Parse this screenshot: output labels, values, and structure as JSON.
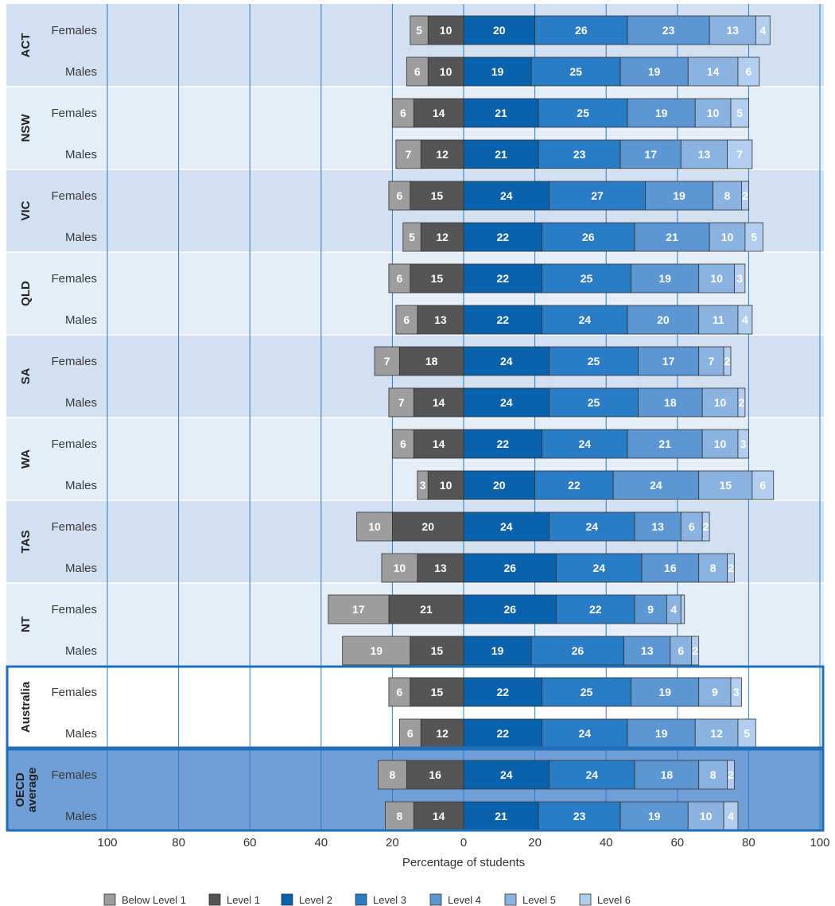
{
  "chart_data": {
    "type": "bar",
    "orientation": "horizontal-diverging",
    "xlabel": "Percentage of students",
    "xlim": [
      -100,
      100
    ],
    "ticks": [
      {
        "value": -100,
        "label": "100"
      },
      {
        "value": -80,
        "label": "80"
      },
      {
        "value": -60,
        "label": "60"
      },
      {
        "value": -40,
        "label": "40"
      },
      {
        "value": -20,
        "label": "20"
      },
      {
        "value": 0,
        "label": "0"
      },
      {
        "value": 20,
        "label": "20"
      },
      {
        "value": 40,
        "label": "40"
      },
      {
        "value": 60,
        "label": "60"
      },
      {
        "value": 80,
        "label": "80"
      },
      {
        "value": 100,
        "label": "100"
      }
    ],
    "grid": true,
    "legend_position": "bottom",
    "levels": [
      {
        "name": "Below Level 1",
        "color": "#9d9d9d",
        "side": "negative"
      },
      {
        "name": "Level 1",
        "color": "#555555",
        "side": "negative"
      },
      {
        "name": "Level 2",
        "color": "#0a62ad",
        "side": "positive"
      },
      {
        "name": "Level 3",
        "color": "#2a7cc4",
        "side": "positive"
      },
      {
        "name": "Level 4",
        "color": "#5c97d3",
        "side": "positive"
      },
      {
        "name": "Level 5",
        "color": "#8ab3e1",
        "side": "positive"
      },
      {
        "name": "Level 6",
        "color": "#b2cdee",
        "side": "positive"
      }
    ],
    "groups": [
      {
        "name": "ACT",
        "style": "a",
        "rows": [
          {
            "label": "Females",
            "values": [
              5,
              10,
              20,
              26,
              23,
              13,
              4
            ]
          },
          {
            "label": "Males",
            "values": [
              6,
              10,
              19,
              25,
              19,
              14,
              6
            ]
          }
        ]
      },
      {
        "name": "NSW",
        "style": "b",
        "rows": [
          {
            "label": "Females",
            "values": [
              6,
              14,
              21,
              25,
              19,
              10,
              5
            ]
          },
          {
            "label": "Males",
            "values": [
              7,
              12,
              21,
              23,
              17,
              13,
              7
            ]
          }
        ]
      },
      {
        "name": "VIC",
        "style": "a",
        "rows": [
          {
            "label": "Females",
            "values": [
              6,
              15,
              24,
              27,
              19,
              8,
              2
            ]
          },
          {
            "label": "Males",
            "values": [
              5,
              12,
              22,
              26,
              21,
              10,
              5
            ]
          }
        ]
      },
      {
        "name": "QLD",
        "style": "b",
        "rows": [
          {
            "label": "Females",
            "values": [
              6,
              15,
              22,
              25,
              19,
              10,
              3
            ]
          },
          {
            "label": "Males",
            "values": [
              6,
              13,
              22,
              24,
              20,
              11,
              4
            ]
          }
        ]
      },
      {
        "name": "SA",
        "style": "a",
        "rows": [
          {
            "label": "Females",
            "values": [
              7,
              18,
              24,
              25,
              17,
              7,
              2
            ]
          },
          {
            "label": "Males",
            "values": [
              7,
              14,
              24,
              25,
              18,
              10,
              2
            ]
          }
        ]
      },
      {
        "name": "WA",
        "style": "b",
        "rows": [
          {
            "label": "Females",
            "values": [
              6,
              14,
              22,
              24,
              21,
              10,
              3
            ]
          },
          {
            "label": "Males",
            "values": [
              3,
              10,
              20,
              22,
              24,
              15,
              6
            ]
          }
        ]
      },
      {
        "name": "TAS",
        "style": "a",
        "rows": [
          {
            "label": "Females",
            "values": [
              10,
              20,
              24,
              24,
              13,
              6,
              2
            ]
          },
          {
            "label": "Males",
            "values": [
              10,
              13,
              26,
              24,
              16,
              8,
              2
            ]
          }
        ]
      },
      {
        "name": "NT",
        "style": "b",
        "rows": [
          {
            "label": "Females",
            "values": [
              17,
              21,
              26,
              22,
              9,
              4,
              1
            ]
          },
          {
            "label": "Males",
            "values": [
              19,
              15,
              19,
              26,
              13,
              6,
              2
            ]
          }
        ]
      },
      {
        "name": "Australia",
        "style": "australia",
        "rows": [
          {
            "label": "Females",
            "values": [
              6,
              15,
              22,
              25,
              19,
              9,
              3
            ]
          },
          {
            "label": "Males",
            "values": [
              6,
              12,
              22,
              24,
              19,
              12,
              5
            ]
          }
        ]
      },
      {
        "name": "OECD average",
        "name_lines": [
          "OECD",
          "average"
        ],
        "style": "oecd",
        "rows": [
          {
            "label": "Females",
            "values": [
              8,
              16,
              24,
              24,
              18,
              8,
              2
            ]
          },
          {
            "label": "Males",
            "values": [
              8,
              14,
              21,
              23,
              19,
              10,
              4
            ]
          }
        ]
      }
    ],
    "hidden_value_labels": [
      [
        7,
        0,
        6
      ]
    ],
    "band_colors": {
      "a": "#d3e0f1",
      "b": "#e5edf7",
      "australia": "#ffffff",
      "oecd": "#6f9fd6",
      "frame": "#1f6fb8",
      "grid": "#2a7cc4"
    }
  }
}
